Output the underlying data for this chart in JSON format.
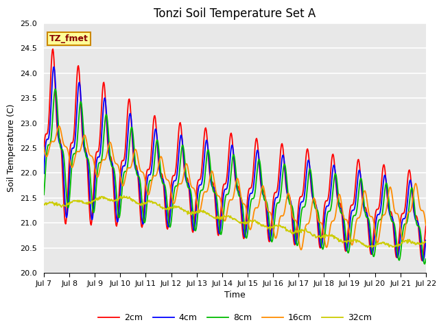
{
  "title": "Tonzi Soil Temperature Set A",
  "xlabel": "Time",
  "ylabel": "Soil Temperature (C)",
  "ylim": [
    20.0,
    25.0
  ],
  "yticks": [
    20.0,
    20.5,
    21.0,
    21.5,
    22.0,
    22.5,
    23.0,
    23.5,
    24.0,
    24.5,
    25.0
  ],
  "xtick_labels": [
    "Jul 7",
    "Jul 8",
    "Jul 9",
    "Jul 10",
    "Jul 11",
    "Jul 12",
    "Jul 13",
    "Jul 14",
    "Jul 15",
    "Jul 16",
    "Jul 17",
    "Jul 18",
    "Jul 19",
    "Jul 20",
    "Jul 21",
    "Jul 22"
  ],
  "legend_labels": [
    "2cm",
    "4cm",
    "8cm",
    "16cm",
    "32cm"
  ],
  "line_colors": [
    "#ff0000",
    "#0000ff",
    "#00bb00",
    "#ff8c00",
    "#cccc00"
  ],
  "annotation_text": "TZ_fmet",
  "annotation_bg": "#ffff99",
  "annotation_border": "#cc8800",
  "background_color": "#e8e8e8",
  "grid_color": "#ffffff",
  "title_fontsize": 12,
  "axis_fontsize": 9,
  "legend_fontsize": 9,
  "tick_fontsize": 8
}
